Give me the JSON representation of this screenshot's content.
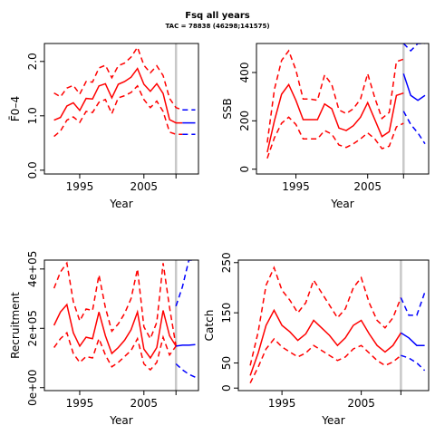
{
  "figure": {
    "title": "Fsq all years",
    "subtitle": "TAC = 78838 (46298;141575)"
  },
  "colors": {
    "history": "#ff0000",
    "forecast": "#0000ff",
    "divider": "#c8c8c8"
  },
  "chart_data": [
    {
      "type": "line",
      "ylabel": "F̄0–4",
      "xlabel": "Year",
      "xlim": [
        1989.5,
        2013.5
      ],
      "ylim": [
        -0.07,
        2.33
      ],
      "xticks": [
        {
          "v": 1995,
          "t": "1995"
        },
        {
          "v": 2005,
          "t": "2005"
        }
      ],
      "yticks": [
        {
          "v": 0,
          "t": "0.0"
        },
        {
          "v": 1,
          "t": "1.0"
        },
        {
          "v": 2,
          "t": "2.0"
        }
      ],
      "divider_x": 2010,
      "history": {
        "x": [
          1991,
          1992,
          1993,
          1994,
          1995,
          1996,
          1997,
          1998,
          1999,
          2000,
          2001,
          2002,
          2003,
          2004,
          2005,
          2006,
          2007,
          2008,
          2009,
          2010,
          2011
        ],
        "median": [
          0.92,
          0.97,
          1.18,
          1.24,
          1.1,
          1.32,
          1.31,
          1.55,
          1.59,
          1.33,
          1.58,
          1.63,
          1.71,
          1.87,
          1.58,
          1.45,
          1.59,
          1.41,
          0.93,
          0.87,
          0.87
        ],
        "lower": [
          0.62,
          0.72,
          0.92,
          0.98,
          0.88,
          1.08,
          1.06,
          1.25,
          1.3,
          1.04,
          1.33,
          1.37,
          1.43,
          1.55,
          1.3,
          1.15,
          1.27,
          1.08,
          0.7,
          0.66,
          0.66
        ],
        "upper": [
          1.42,
          1.35,
          1.51,
          1.56,
          1.4,
          1.63,
          1.62,
          1.88,
          1.93,
          1.7,
          1.92,
          1.97,
          2.08,
          2.26,
          1.93,
          1.79,
          1.92,
          1.74,
          1.32,
          1.15,
          1.11
        ]
      },
      "forecast": {
        "x": [
          2011,
          2012,
          2013
        ],
        "median": [
          0.87,
          0.87,
          0.87
        ],
        "lower": [
          0.66,
          0.66,
          0.66
        ],
        "upper": [
          1.11,
          1.11,
          1.11
        ]
      }
    },
    {
      "type": "line",
      "ylabel": "SSB",
      "xlabel": "Year",
      "xlim": [
        1989.5,
        2013.5
      ],
      "ylim": [
        -20,
        520
      ],
      "xticks": [
        {
          "v": 1995,
          "t": "1995"
        },
        {
          "v": 2005,
          "t": "2005"
        }
      ],
      "yticks": [
        {
          "v": 0,
          "t": "0"
        },
        {
          "v": 200,
          "t": "200"
        },
        {
          "v": 400,
          "t": "400"
        }
      ],
      "divider_x": 2010,
      "history": {
        "x": [
          1991,
          1992,
          1993,
          1994,
          1995,
          1996,
          1997,
          1998,
          1999,
          2000,
          2001,
          2002,
          2003,
          2004,
          2005,
          2006,
          2007,
          2008,
          2009,
          2010
        ],
        "median": [
          70,
          200,
          310,
          350,
          285,
          205,
          205,
          205,
          270,
          250,
          170,
          160,
          180,
          215,
          275,
          205,
          135,
          155,
          305,
          315
        ],
        "lower": [
          45,
          130,
          190,
          215,
          185,
          125,
          125,
          125,
          160,
          145,
          100,
          90,
          105,
          125,
          150,
          125,
          85,
          95,
          175,
          190
        ],
        "upper": [
          110,
          330,
          450,
          490,
          410,
          290,
          290,
          285,
          390,
          350,
          245,
          230,
          250,
          290,
          395,
          295,
          210,
          235,
          445,
          455
        ]
      },
      "forecast": {
        "x": [
          2010,
          2011,
          2012,
          2013
        ],
        "median": [
          395,
          305,
          285,
          305
        ],
        "lower": [
          240,
          185,
          150,
          105
        ],
        "upper": [
          520,
          490,
          520,
          520
        ]
      }
    },
    {
      "type": "line",
      "ylabel": "Recruitment",
      "xlabel": "Year",
      "xlim": [
        1989.5,
        2013.5
      ],
      "ylim": [
        -10000,
        430000
      ],
      "xticks": [
        {
          "v": 1995,
          "t": "1995"
        },
        {
          "v": 2005,
          "t": "2005"
        }
      ],
      "yticks": [
        {
          "v": 0,
          "t": "0e+00"
        },
        {
          "v": 200000,
          "t": "2e+05"
        },
        {
          "v": 400000,
          "t": "4e+05"
        }
      ],
      "divider_x": 2010,
      "history": {
        "x": [
          1991,
          1992,
          1993,
          1994,
          1995,
          1996,
          1997,
          1998,
          1999,
          2000,
          2001,
          2002,
          2003,
          2004,
          2005,
          2006,
          2007,
          2008,
          2009,
          2010
        ],
        "median": [
          210000,
          255000,
          280000,
          185000,
          140000,
          170000,
          165000,
          255000,
          175000,
          115000,
          135000,
          160000,
          195000,
          255000,
          130000,
          100000,
          135000,
          260000,
          175000,
          140000
        ],
        "lower": [
          135000,
          165000,
          185000,
          115000,
          85000,
          105000,
          100000,
          165000,
          110000,
          70000,
          85000,
          105000,
          125000,
          165000,
          80000,
          60000,
          85000,
          170000,
          110000,
          140000
        ],
        "upper": [
          335000,
          390000,
          420000,
          290000,
          225000,
          265000,
          260000,
          380000,
          270000,
          190000,
          215000,
          250000,
          300000,
          400000,
          205000,
          165000,
          220000,
          420000,
          270000,
          140000
        ]
      },
      "forecast": {
        "x": [
          2010,
          2011,
          2012,
          2013
        ],
        "median": [
          140000,
          143000,
          143000,
          145000
        ],
        "lower": [
          80000,
          60000,
          45000,
          35000
        ],
        "upper": [
          275000,
          340000,
          430000,
          430000
        ]
      }
    },
    {
      "type": "line",
      "ylabel": "Catch",
      "xlabel": "Year",
      "xlim": [
        1989.5,
        2013.5
      ],
      "ylim": [
        -5,
        255
      ],
      "xticks": [
        {
          "v": 1995,
          "t": "1995"
        },
        {
          "v": 2005,
          "t": "2005"
        }
      ],
      "yticks": [
        {
          "v": 0,
          "t": "0"
        },
        {
          "v": 50,
          "t": "50"
        },
        {
          "v": 150,
          "t": "150"
        },
        {
          "v": 250,
          "t": "250"
        }
      ],
      "divider_x": 2010,
      "history": {
        "x": [
          1991,
          1992,
          1993,
          1994,
          1995,
          1996,
          1997,
          1998,
          1999,
          2000,
          2001,
          2002,
          2003,
          2004,
          2005,
          2006,
          2007,
          2008,
          2009,
          2010
        ],
        "median": [
          25,
          70,
          125,
          155,
          125,
          112,
          95,
          108,
          135,
          120,
          105,
          85,
          100,
          125,
          135,
          108,
          85,
          72,
          85,
          110
        ],
        "lower": [
          10,
          42,
          78,
          98,
          82,
          72,
          62,
          70,
          85,
          75,
          65,
          55,
          62,
          78,
          85,
          70,
          55,
          45,
          52,
          65
        ],
        "upper": [
          45,
          112,
          205,
          240,
          195,
          175,
          150,
          170,
          215,
          190,
          165,
          140,
          158,
          200,
          220,
          170,
          135,
          120,
          140,
          180
        ]
      },
      "forecast": {
        "x": [
          2010,
          2011,
          2012,
          2013
        ],
        "median": [
          110,
          100,
          85,
          85
        ],
        "lower": [
          65,
          60,
          50,
          35
        ],
        "upper": [
          180,
          145,
          145,
          190
        ]
      }
    }
  ]
}
